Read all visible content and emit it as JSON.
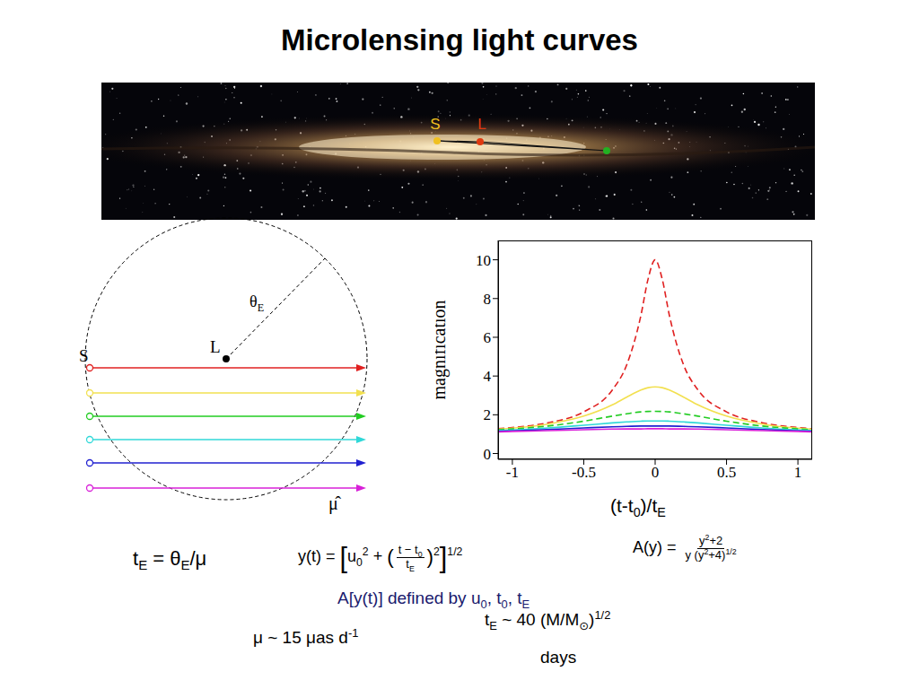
{
  "title": "Microlensing light curves",
  "sky": {
    "source": {
      "label": "S",
      "color": "#f0c020"
    },
    "lens": {
      "label": "L",
      "color": "#e03a10"
    },
    "observer_color": "#22b022"
  },
  "geometry": {
    "source_label": "S",
    "lens_label": "L",
    "radius_label": [
      {
        "t": "θ"
      },
      {
        "sub": "E"
      }
    ],
    "direction_label": "μ̂"
  },
  "chart_data": {
    "type": "line",
    "y_label": "magnification",
    "x_label": [
      {
        "t": "(t-t"
      },
      {
        "sub": "0"
      },
      {
        "t": ")/t"
      },
      {
        "sub": "E"
      }
    ],
    "x": [
      -1.1,
      -1,
      -0.75,
      -0.5,
      -0.3,
      -0.2,
      -0.1,
      -0.05,
      0,
      0.05,
      0.1,
      0.2,
      0.3,
      0.5,
      0.75,
      1,
      1.1
    ],
    "xlim": [
      -1.1,
      1.1
    ],
    "xticks": [
      -1,
      -0.5,
      0,
      0.5,
      1
    ],
    "ylim": [
      -0.3,
      11
    ],
    "yticks": [
      0,
      2,
      4,
      6,
      8,
      10
    ],
    "grid": false,
    "series": [
      {
        "color": "#e02020",
        "line_style": "dashed",
        "values": [
          1.28,
          1.34,
          1.59,
          2.15,
          3.28,
          4.56,
          7.12,
          8.99,
          10.0,
          8.99,
          7.12,
          4.56,
          3.28,
          2.15,
          1.59,
          1.34,
          1.28
        ]
      },
      {
        "color": "#f2e050",
        "line_style": "solid",
        "values": [
          1.26,
          1.31,
          1.52,
          1.93,
          2.51,
          2.91,
          3.28,
          3.4,
          3.44,
          3.4,
          3.28,
          2.91,
          2.51,
          1.93,
          1.52,
          1.31,
          1.26
        ]
      },
      {
        "color": "#22cc22",
        "line_style": "dashed",
        "values": [
          1.23,
          1.27,
          1.42,
          1.67,
          1.93,
          2.05,
          2.15,
          2.17,
          2.18,
          2.17,
          2.15,
          2.05,
          1.93,
          1.67,
          1.42,
          1.27,
          1.23
        ]
      },
      {
        "color": "#30d8d8",
        "line_style": "solid",
        "values": [
          1.19,
          1.22,
          1.32,
          1.46,
          1.58,
          1.63,
          1.67,
          1.68,
          1.68,
          1.68,
          1.67,
          1.63,
          1.58,
          1.46,
          1.32,
          1.22,
          1.19
        ]
      },
      {
        "color": "#2020d0",
        "line_style": "solid",
        "values": [
          1.15,
          1.17,
          1.24,
          1.32,
          1.38,
          1.4,
          1.42,
          1.42,
          1.42,
          1.42,
          1.42,
          1.4,
          1.38,
          1.32,
          1.24,
          1.17,
          1.15
        ]
      },
      {
        "color": "#d820d8",
        "line_style": "solid",
        "values": [
          1.12,
          1.14,
          1.18,
          1.23,
          1.26,
          1.27,
          1.27,
          1.28,
          1.28,
          1.28,
          1.27,
          1.27,
          1.26,
          1.23,
          1.18,
          1.14,
          1.12
        ]
      }
    ]
  },
  "formulas": {
    "te_def": [
      {
        "t": "t"
      },
      {
        "sub": "E"
      },
      {
        "t": " = θ"
      },
      {
        "sub": "E"
      },
      {
        "t": "/μ"
      }
    ],
    "y_def": [
      {
        "t": "y(t) = "
      },
      {
        "big": "["
      },
      {
        "t": "u"
      },
      {
        "sub": "0"
      },
      {
        "sup": "2"
      },
      {
        "t": " + "
      },
      {
        "mid": "("
      },
      {
        "num": [
          {
            "t": "t − t"
          },
          {
            "sub": "0"
          }
        ],
        "den": [
          {
            "t": "t"
          },
          {
            "sub": "E"
          }
        ]
      },
      {
        "mid": ")"
      },
      {
        "sup": "2"
      },
      {
        "big": "]"
      },
      {
        "sup": "1/2"
      }
    ],
    "a_def": [
      {
        "t": "A(y) = "
      },
      {
        "num": [
          {
            "t": "y"
          },
          {
            "sup": "2"
          },
          {
            "t": "+2"
          }
        ],
        "den": [
          {
            "t": "y (y"
          },
          {
            "sup": "2"
          },
          {
            "t": "+4)"
          },
          {
            "sup": "1/2"
          }
        ]
      }
    ],
    "defined": [
      {
        "t": "A[y(t)] defined by u"
      },
      {
        "sub": "0"
      },
      {
        "t": ", t"
      },
      {
        "sub": "0"
      },
      {
        "t": ", t"
      },
      {
        "sub": "E"
      }
    ],
    "mu": [
      {
        "t": "μ ~ 15 μas d"
      },
      {
        "sup": "-1"
      }
    ],
    "te_scale": [
      {
        "t": "t"
      },
      {
        "sub": "E"
      },
      {
        "t": " ~ 40 (M/M"
      },
      {
        "sub": "⊙"
      },
      {
        "t": ")"
      },
      {
        "sup": "1/2"
      }
    ],
    "days": [
      {
        "t": "days"
      }
    ]
  }
}
